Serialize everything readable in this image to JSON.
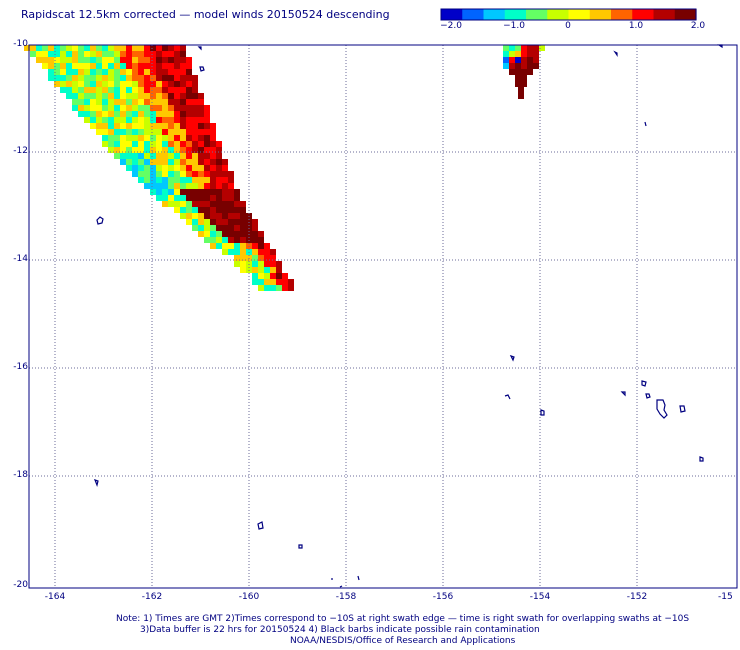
{
  "title": "Rapidscat 12.5km corrected — model winds 20150524 descending",
  "colorbar": {
    "ticks": [
      "−2.0",
      "−1.0",
      "0",
      "1.0",
      "2.0"
    ],
    "tick_values": [
      -2,
      -1,
      0,
      1,
      2
    ],
    "range": [
      -2.0,
      2.0
    ],
    "colors": [
      "#0000c8",
      "#0064ff",
      "#00c8ff",
      "#00ffc8",
      "#64ff64",
      "#c8ff00",
      "#ffff00",
      "#ffc800",
      "#ff6400",
      "#ff0000",
      "#b40000",
      "#780000"
    ]
  },
  "map": {
    "lat_labels": [
      "-10",
      "-12",
      "-14",
      "-16",
      "-18",
      "-20"
    ],
    "lon_labels": [
      "-164",
      "-162",
      "-160",
      "-158",
      "-156",
      "-154",
      "-152",
      "-15"
    ],
    "lat_range": [
      -20,
      -10
    ],
    "lon_range": [
      -164.5,
      -150.2
    ],
    "grid": "dotted",
    "coastline_color": "#000080"
  },
  "notes": {
    "line1": "Note: 1) Times are GMT 2)Times correspond to −10S at right swath edge — time is right swath for overlapping swaths at −10S",
    "line2": "3)Data buffer is 22 hrs for 20150524 4) Black barbs indicate possible rain contamination",
    "line3": "NOAA/NESDIS/Office of Research and Applications"
  }
}
